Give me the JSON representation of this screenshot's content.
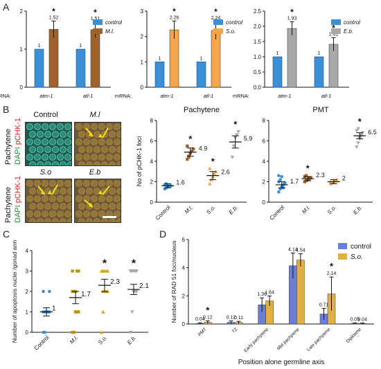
{
  "panel_labels": {
    "a": "A",
    "b": "B",
    "c": "C",
    "d": "D"
  },
  "panel_a": {
    "mrna_prefix": "mRNA:",
    "genes": [
      "atm-1",
      "atl-1"
    ],
    "charts": [
      {
        "legend": [
          "control",
          "M.l."
        ],
        "ylim": [
          0,
          2
        ],
        "ticks": [
          "0",
          "1",
          "2"
        ],
        "ticksVal": [
          0,
          1,
          2
        ],
        "control": [
          1,
          1
        ],
        "treated": [
          1.52,
          1.51
        ],
        "errs": [
          0.22,
          0.2
        ],
        "labels_control": [
          "1",
          "1"
        ],
        "labels_treated": [
          "1.52",
          "1.51"
        ],
        "color": "#a0622a",
        "stars": [
          "*",
          "*"
        ]
      },
      {
        "legend": [
          "control",
          "S.o."
        ],
        "ylim": [
          0,
          3
        ],
        "ticks": [
          "0",
          "1",
          "2",
          "3"
        ],
        "ticksVal": [
          0,
          1,
          2,
          3
        ],
        "control": [
          1,
          1
        ],
        "treated": [
          2.26,
          2.24
        ],
        "errs": [
          0.35,
          0.35
        ],
        "labels_control": [
          "1",
          "1"
        ],
        "labels_treated": [
          "2.26",
          "2.24"
        ],
        "color": "#f5a64a",
        "stars": [
          "*",
          "*"
        ]
      },
      {
        "legend": [
          "control",
          "E.b."
        ],
        "ylim": [
          0,
          2.5
        ],
        "ticks": [
          "0.0",
          "0.5",
          "1.0",
          "1.5",
          "2.0",
          "2.5"
        ],
        "ticksVal": [
          0,
          0.5,
          1,
          1.5,
          2,
          2.5
        ],
        "control": [
          1,
          1
        ],
        "treated": [
          1.93,
          1.41
        ],
        "errs": [
          0.22,
          0.22
        ],
        "labels_control": [
          "1",
          "1"
        ],
        "labels_treated": [
          "1.93",
          "1.41"
        ],
        "color": "#a8a8a8",
        "stars": [
          "*",
          "*"
        ]
      }
    ],
    "control_color": "#3b8fd6"
  },
  "panel_b_images": {
    "col_labels": [
      "Control",
      "M.l"
    ],
    "row2_labels": [
      "S.o",
      "E.b"
    ],
    "row_label_main": "Pachytene",
    "stain_dapi": "DAPI",
    "stain_pchk": "pCHK-1"
  },
  "chart_data": [
    {
      "type": "scatter",
      "title": "Pachytene",
      "ylabel": "No of pCHK-1 foci",
      "categories": [
        "Control",
        "M.l.",
        "S.o.",
        "E.b."
      ],
      "ylim": [
        0,
        8
      ],
      "yticks": [
        0,
        2,
        4,
        6,
        8
      ],
      "means": [
        1.6,
        4.9,
        2.6,
        5.9
      ],
      "mean_labels": [
        "1.6",
        "4.9",
        "2.6",
        "5.9"
      ],
      "errs": [
        0.2,
        0.4,
        0.4,
        0.6
      ],
      "points": [
        [
          1.3,
          1.4,
          1.5,
          1.6,
          1.6,
          1.7,
          1.8,
          1.5
        ],
        [
          4.2,
          4.5,
          4.8,
          5.0,
          5.2,
          5.5,
          4.4
        ],
        [
          1.8,
          2.2,
          2.5,
          2.8,
          3.0,
          3.3
        ],
        [
          4.4,
          5.5,
          6.3,
          6.6,
          6.9
        ]
      ],
      "stars": [
        "",
        "*",
        "*",
        "*"
      ],
      "colors": [
        "#3b8fd6",
        "#a0622a",
        "#f5a64a",
        "#a8a8a8"
      ]
    },
    {
      "type": "scatter",
      "title": "PMT",
      "ylabel": "",
      "categories": [
        "Control",
        "M.l.",
        "S.o.",
        "E.b."
      ],
      "ylim": [
        0,
        8
      ],
      "yticks": [
        0,
        2,
        4,
        6,
        8
      ],
      "means": [
        1.7,
        2.3,
        2.0,
        6.5
      ],
      "mean_labels": [
        "1.7",
        "2.3",
        "2",
        "6.5"
      ],
      "errs": [
        0.3,
        0.2,
        0.2,
        0.3
      ],
      "points": [
        [
          1.0,
          1.3,
          1.5,
          1.7,
          1.8,
          2.0,
          2.2,
          2.5,
          1.4,
          1.9,
          2.6
        ],
        [
          2.0,
          2.1,
          2.2,
          2.3,
          2.4,
          2.5,
          2.6,
          2.2,
          2.4
        ],
        [
          1.8,
          1.9,
          2.0,
          2.1,
          2.2,
          2.0
        ],
        [
          5.4,
          5.8,
          6.2,
          6.5,
          6.8,
          7.0,
          7.2,
          6.3,
          6.6
        ]
      ],
      "stars": [
        "",
        "*",
        "",
        "*"
      ],
      "colors": [
        "#3b8fd6",
        "#a0622a",
        "#f5a64a",
        "#a8a8a8"
      ]
    },
    {
      "type": "scatter",
      "title": "",
      "ylabel": "Number of apoptosis nuclei /gonad arm",
      "categories": [
        "Control",
        "M.l.",
        "S.o.",
        "E.b."
      ],
      "ylim": [
        0,
        4
      ],
      "yticks": [
        0,
        1,
        2,
        3,
        4
      ],
      "means": [
        1.0,
        1.7,
        2.3,
        2.1
      ],
      "mean_labels": [
        "1",
        "1.7",
        "2.3",
        "2.1"
      ],
      "errs": [
        0.2,
        0.3,
        0.3,
        0.25
      ],
      "points": [
        [
          0,
          0,
          1,
          1,
          1,
          1,
          1,
          1,
          1,
          2,
          2
        ],
        [
          0,
          0,
          1,
          1,
          1,
          2,
          2,
          2,
          3,
          3,
          3
        ],
        [
          0,
          1,
          2,
          2,
          2,
          3,
          3,
          3,
          3,
          3,
          3,
          2
        ],
        [
          0,
          1,
          2,
          2,
          2,
          3,
          3,
          3,
          3,
          3,
          3
        ]
      ],
      "stars": [
        "",
        "",
        "*",
        "*"
      ],
      "colors": [
        "#3b8fd6",
        "#b8960a",
        "#d4a818",
        "#a8a8a8"
      ]
    },
    {
      "type": "bar",
      "title": "",
      "xlabel": "Position alone germline axis",
      "ylabel": "Number of RAD 51 foci/nucleus",
      "categories": [
        "PMT",
        "TZ",
        "Early pachytene",
        "Mid pachytene",
        "Late pachytene",
        "Diplotene"
      ],
      "ylim": [
        0,
        6
      ],
      "yticks": [
        0,
        2,
        4,
        6
      ],
      "series": [
        {
          "name": "control",
          "values": [
            0.04,
            0.12,
            1.36,
            4.14,
            0.71,
            0.05
          ],
          "labels": [
            "0.04",
            "0.12",
            "1.36",
            "4.14",
            "0.71",
            "0.05"
          ],
          "errs": [
            0.05,
            0.1,
            0.5,
            0.9,
            0.4,
            0.03
          ],
          "color": "#6b7fd6"
        },
        {
          "name": "S.o.",
          "values": [
            0.12,
            0.11,
            1.64,
            4.54,
            2.14,
            0.04
          ],
          "labels": [
            "0.12",
            "0.11",
            "1.64",
            "4.54",
            "2.14",
            "0.04"
          ],
          "errs": [
            0.1,
            0.08,
            0.35,
            0.45,
            1.2,
            0.03
          ],
          "color": "#e0b043"
        }
      ],
      "stars": [
        "*",
        "",
        "",
        "",
        "*",
        ""
      ],
      "legend_position": "top-right"
    }
  ]
}
